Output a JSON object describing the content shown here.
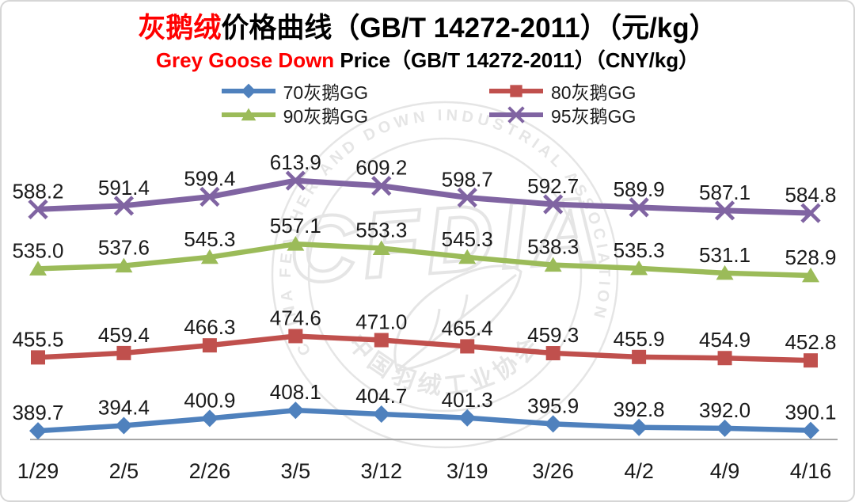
{
  "title": {
    "highlight": "灰鹅绒",
    "rest": "价格曲线（GB/T 14272-2011）（元/kg）"
  },
  "subtitle": {
    "highlight": "Grey Goose Down",
    "rest": " Price（GB/T 14272-2011）（CNY/kg）"
  },
  "colors": {
    "accent_red": "#ff0000",
    "series_70": "#4f81bd",
    "series_80": "#c0504d",
    "series_90": "#9bbb59",
    "series_95": "#8064a2",
    "axis_line": "#a6a6a6",
    "label_text": "#1a1a1a",
    "watermark_gray": "#5a5a5a"
  },
  "legend": [
    {
      "label": "70灰鹅GG",
      "color": "#4f81bd",
      "marker": "diamond"
    },
    {
      "label": "80灰鹅GG",
      "color": "#c0504d",
      "marker": "square"
    },
    {
      "label": "90灰鹅GG",
      "color": "#9bbb59",
      "marker": "triangle"
    },
    {
      "label": "95灰鹅GG",
      "color": "#8064a2",
      "marker": "x"
    }
  ],
  "chart_data": {
    "type": "line",
    "title": "灰鹅绒价格曲线（GB/T 14272-2011）（元/kg）",
    "subtitle": "Grey Goose Down Price（GB/T 14272-2011）（CNY/kg）",
    "xlabel": "",
    "ylabel": "",
    "categories": [
      "1/29",
      "2/5",
      "2/26",
      "3/5",
      "3/12",
      "3/19",
      "3/26",
      "4/2",
      "4/9",
      "4/16"
    ],
    "series": [
      {
        "name": "70灰鹅GG",
        "color": "#4f81bd",
        "marker": "diamond",
        "values": [
          389.7,
          394.4,
          400.9,
          408.1,
          404.7,
          401.3,
          395.9,
          392.8,
          392.0,
          390.1
        ]
      },
      {
        "name": "80灰鹅GG",
        "color": "#c0504d",
        "marker": "square",
        "values": [
          455.5,
          459.4,
          466.3,
          474.6,
          471.0,
          465.4,
          459.3,
          455.9,
          454.9,
          452.8
        ]
      },
      {
        "name": "90灰鹅GG",
        "color": "#9bbb59",
        "marker": "triangle",
        "values": [
          535.0,
          537.6,
          545.3,
          557.1,
          553.3,
          545.3,
          538.3,
          535.3,
          531.1,
          528.9
        ]
      },
      {
        "name": "95灰鹅GG",
        "color": "#8064a2",
        "marker": "x",
        "values": [
          588.2,
          591.4,
          599.4,
          613.9,
          609.2,
          598.7,
          592.7,
          589.9,
          587.1,
          584.8
        ]
      }
    ],
    "ylim": [
      382,
      620
    ],
    "grid": false,
    "data_labels": true,
    "legend_position": "top"
  },
  "watermark": {
    "ring_text": "CHINA FEATHER AND DOWN INDUSTRIAL ASSOCIATION",
    "center_text": "CFDIA",
    "bottom_text": "中国羽绒工业协会"
  }
}
